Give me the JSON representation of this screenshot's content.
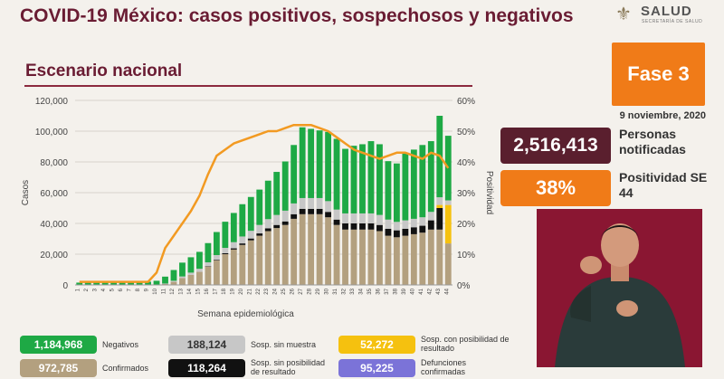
{
  "header": {
    "title": "COVID-19 México: casos positivos, sospechosos y negativos",
    "logo_name": "SALUD",
    "logo_sub": "SECRETARÍA DE SALUD"
  },
  "subtitle": "Escenario nacional",
  "phase": "Fase 3",
  "date": "9 noviembre, 2020",
  "stats": {
    "notified_value": "2,516,413",
    "notified_label": "Personas notificadas",
    "positivity_value": "38%",
    "positivity_label": "Positividad SE 44"
  },
  "legend": [
    {
      "value": "1,184,968",
      "label": "Negativos",
      "color": "#1ea945"
    },
    {
      "value": "188,124",
      "label": "Sosp. sin muestra",
      "color": "#c7c7c7"
    },
    {
      "value": "52,272",
      "label": "Sosp. con posibilidad de resultado",
      "color": "#f5c10f"
    },
    {
      "value": "972,785",
      "label": "Confirmados",
      "color": "#b3a07f"
    },
    {
      "value": "118,264",
      "label": "Sosp. sin posibilidad de resultado",
      "color": "#111111"
    },
    {
      "value": "95,225",
      "label": "Defunciones confirmadas",
      "color": "#7b73d8"
    }
  ],
  "chart_data": {
    "type": "bar",
    "stacked": true,
    "xlabel": "Semana epidemiológica",
    "ylabel": "Casos",
    "y2label": "Positividad",
    "ylim": [
      0,
      120000
    ],
    "y2lim": [
      0,
      60
    ],
    "yticks": [
      "0",
      "20,000",
      "40,000",
      "60,000",
      "80,000",
      "100,000",
      "120,000"
    ],
    "y2ticks": [
      "0%",
      "10%",
      "20%",
      "30%",
      "40%",
      "50%",
      "60%"
    ],
    "categories": [
      "1",
      "2",
      "3",
      "4",
      "5",
      "6",
      "7",
      "8",
      "9",
      "10",
      "11",
      "12",
      "13",
      "14",
      "15",
      "16",
      "17",
      "18",
      "19",
      "20",
      "21",
      "22",
      "23",
      "24",
      "25",
      "26",
      "27",
      "28",
      "29",
      "30",
      "31",
      "32",
      "33",
      "34",
      "35",
      "36",
      "37",
      "38",
      "39",
      "40",
      "41",
      "42",
      "43",
      "44"
    ],
    "series": [
      {
        "name": "Confirmados",
        "color": "#b3a07f",
        "values": [
          0,
          0,
          0,
          0,
          0,
          0,
          0,
          0,
          0,
          100,
          600,
          2000,
          4500,
          6500,
          8500,
          12000,
          16000,
          20000,
          23000,
          26000,
          29000,
          32000,
          35000,
          37000,
          39000,
          43000,
          46000,
          46000,
          46000,
          44000,
          39000,
          36000,
          36000,
          36000,
          36000,
          35000,
          32000,
          31000,
          32000,
          33000,
          34000,
          36000,
          36000,
          27000
        ]
      },
      {
        "name": "Sosp. sin posibilidad de resultado",
        "color": "#111111",
        "values": [
          0,
          0,
          0,
          0,
          0,
          0,
          0,
          0,
          0,
          0,
          0,
          0,
          0,
          0,
          0,
          200,
          400,
          600,
          800,
          1000,
          1200,
          1500,
          1800,
          2000,
          2300,
          3000,
          3500,
          3500,
          3500,
          3500,
          3500,
          4000,
          4000,
          4000,
          4000,
          4000,
          4500,
          4500,
          4500,
          4500,
          4500,
          6000,
          14000,
          0
        ]
      },
      {
        "name": "Sosp. con posibilidad de resultado",
        "color": "#f5c10f",
        "values": [
          0,
          0,
          0,
          0,
          0,
          0,
          0,
          0,
          0,
          0,
          0,
          0,
          0,
          0,
          0,
          0,
          0,
          0,
          0,
          0,
          0,
          0,
          0,
          0,
          0,
          0,
          0,
          0,
          0,
          0,
          0,
          0,
          0,
          0,
          0,
          0,
          0,
          0,
          0,
          0,
          0,
          0,
          2000,
          25000
        ]
      },
      {
        "name": "Sosp. sin muestra",
        "color": "#c7c7c7",
        "values": [
          0,
          0,
          0,
          0,
          0,
          0,
          0,
          0,
          0,
          100,
          300,
          700,
          1000,
          1500,
          2000,
          2500,
          3000,
          3500,
          4000,
          4500,
          5000,
          5500,
          6000,
          6500,
          7000,
          7000,
          7000,
          7000,
          7000,
          7000,
          6500,
          6500,
          6500,
          6500,
          6500,
          6500,
          6000,
          5500,
          5500,
          5500,
          5500,
          5500,
          5000,
          3000
        ]
      },
      {
        "name": "Negativos",
        "color": "#1ea945",
        "values": [
          1500,
          2500,
          2500,
          2300,
          2200,
          2000,
          2000,
          2000,
          2100,
          2500,
          4500,
          7000,
          9000,
          10000,
          11000,
          12500,
          15000,
          17000,
          19000,
          21000,
          22000,
          23000,
          25000,
          28000,
          32000,
          38000,
          46000,
          45000,
          44000,
          45000,
          46000,
          42000,
          44000,
          45000,
          47000,
          46000,
          38000,
          38000,
          44000,
          45000,
          47000,
          46000,
          53000,
          42000
        ]
      },
      {
        "name": "Positividad (%)",
        "color": "#f29a22",
        "axis": "right",
        "type": "line",
        "values": [
          1,
          1,
          1,
          1,
          1,
          1,
          1,
          1,
          1,
          4,
          12,
          16,
          20,
          24,
          29,
          36,
          42,
          44,
          46,
          47,
          48,
          49,
          50,
          50,
          51,
          52,
          52,
          52,
          51,
          50,
          48,
          46,
          44,
          43,
          42,
          41,
          42,
          43,
          43,
          42,
          41,
          43,
          42,
          38
        ]
      }
    ]
  }
}
